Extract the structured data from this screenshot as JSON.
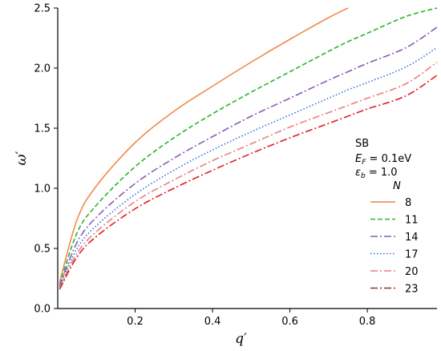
{
  "chart_data": {
    "type": "line",
    "title": "",
    "xlabel": "q′",
    "ylabel": "ω′",
    "xlim": [
      0.0,
      0.98
    ],
    "ylim": [
      0.0,
      2.5
    ],
    "xticks": [
      0.2,
      0.4,
      0.6,
      0.8
    ],
    "xtick_labels": [
      "0.2",
      "0.4",
      "0.6",
      "0.8"
    ],
    "yticks": [
      0.0,
      0.5,
      1.0,
      1.5,
      2.0,
      2.5
    ],
    "ytick_labels": [
      "0.0",
      "0.5",
      "1.0",
      "1.5",
      "2.0",
      "2.5"
    ],
    "grid": false,
    "legend_position": "right",
    "annotation": {
      "line1": "SB",
      "line2_symbol": "E",
      "line2_sub": "F",
      "line2_value": " = 0.1eV",
      "line3_symbol": "ε",
      "line3_sub": "b",
      "line3_value": " = 1.0"
    },
    "legend_title": "N",
    "x": [
      0.005,
      0.05,
      0.1,
      0.2,
      0.3,
      0.4,
      0.5,
      0.6,
      0.7,
      0.75,
      0.8,
      0.9,
      0.98
    ],
    "series": [
      {
        "name": "8",
        "color": "#f08a4b",
        "dash": "solid",
        "values": [
          0.22,
          0.74,
          1.02,
          1.38,
          1.64,
          1.85,
          2.05,
          2.24,
          2.42,
          2.5,
          null,
          null,
          null
        ]
      },
      {
        "name": "11",
        "color": "#2ab52a",
        "dash": "dashed",
        "values": [
          0.2,
          0.63,
          0.86,
          1.18,
          1.42,
          1.62,
          1.8,
          1.97,
          2.14,
          2.22,
          2.29,
          2.43,
          2.5
        ]
      },
      {
        "name": "14",
        "color": "#8a5bb5",
        "dash": "dashdot",
        "values": [
          0.19,
          0.55,
          0.76,
          1.04,
          1.25,
          1.43,
          1.6,
          1.75,
          1.9,
          1.97,
          2.04,
          2.17,
          2.34
        ]
      },
      {
        "name": "17",
        "color": "#3a6fd8",
        "dash": "dotted",
        "values": [
          0.18,
          0.5,
          0.69,
          0.95,
          1.15,
          1.32,
          1.47,
          1.61,
          1.75,
          1.82,
          1.88,
          2.01,
          2.17
        ]
      },
      {
        "name": "20",
        "color": "#ea7f7f",
        "dash": "dashdot",
        "values": [
          0.17,
          0.46,
          0.64,
          0.89,
          1.07,
          1.23,
          1.37,
          1.51,
          1.63,
          1.69,
          1.75,
          1.87,
          2.05
        ]
      },
      {
        "name": "23",
        "color": "#e11f1f",
        "dash": "dashdot",
        "values": [
          0.16,
          0.43,
          0.6,
          0.83,
          1.0,
          1.15,
          1.29,
          1.42,
          1.54,
          1.6,
          1.66,
          1.77,
          1.94
        ]
      }
    ],
    "legend_line_colors": [
      "#e8844a",
      "#2ab52a",
      "#8a5bb5",
      "#3a6fd8",
      "#ea7f7f",
      "#8b3a1a"
    ]
  }
}
